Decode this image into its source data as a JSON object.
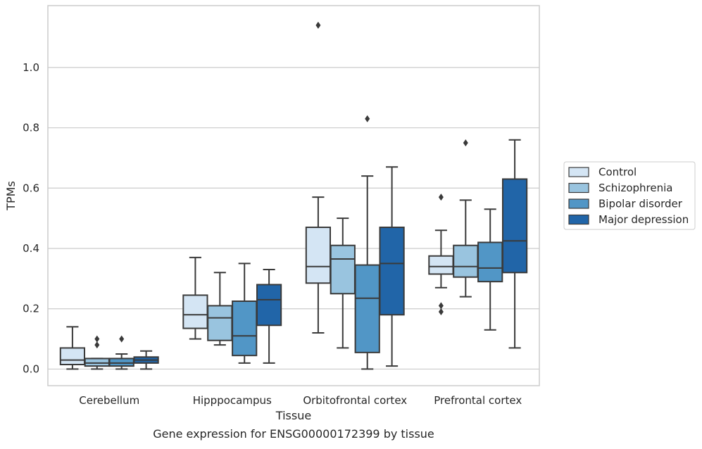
{
  "chart_data": {
    "type": "box",
    "title": "",
    "caption": "Gene expression for ENSG00000172399 by tissue",
    "xlabel": "Tissue",
    "ylabel": "TPMs",
    "ylim": [
      -0.055,
      1.205
    ],
    "yticks": [
      0.0,
      0.2,
      0.4,
      0.6,
      0.8,
      1.0
    ],
    "ytick_labels": [
      "0.0",
      "0.2",
      "0.4",
      "0.6",
      "0.8",
      "1.0"
    ],
    "grid": "horizontal",
    "legend_position": "right",
    "categories": [
      "Cerebellum",
      "Hipppocampus",
      "Orbitofrontal cortex",
      "Prefrontal cortex"
    ],
    "series": [
      {
        "name": "Control",
        "color": "#d4e5f4",
        "boxes": [
          {
            "whisker_low": 0.0,
            "q1": 0.015,
            "median": 0.03,
            "q3": 0.07,
            "whisker_high": 0.14,
            "outliers": []
          },
          {
            "whisker_low": 0.1,
            "q1": 0.135,
            "median": 0.18,
            "q3": 0.245,
            "whisker_high": 0.37,
            "outliers": []
          },
          {
            "whisker_low": 0.12,
            "q1": 0.285,
            "median": 0.34,
            "q3": 0.47,
            "whisker_high": 0.57,
            "outliers": [
              1.14
            ]
          },
          {
            "whisker_low": 0.27,
            "q1": 0.315,
            "median": 0.34,
            "q3": 0.375,
            "whisker_high": 0.46,
            "outliers": [
              0.57,
              0.21,
              0.19
            ]
          }
        ]
      },
      {
        "name": "Schizophrenia",
        "color": "#99c4df",
        "boxes": [
          {
            "whisker_low": 0.0,
            "q1": 0.01,
            "median": 0.02,
            "q3": 0.035,
            "whisker_high": 0.035,
            "outliers": [
              0.1,
              0.08
            ]
          },
          {
            "whisker_low": 0.08,
            "q1": 0.095,
            "median": 0.17,
            "q3": 0.21,
            "whisker_high": 0.32,
            "outliers": []
          },
          {
            "whisker_low": 0.07,
            "q1": 0.25,
            "median": 0.365,
            "q3": 0.41,
            "whisker_high": 0.5,
            "outliers": []
          },
          {
            "whisker_low": 0.24,
            "q1": 0.305,
            "median": 0.34,
            "q3": 0.41,
            "whisker_high": 0.56,
            "outliers": [
              0.75
            ]
          }
        ]
      },
      {
        "name": "Bipolar disorder",
        "color": "#5196c6",
        "boxes": [
          {
            "whisker_low": 0.0,
            "q1": 0.01,
            "median": 0.02,
            "q3": 0.035,
            "whisker_high": 0.05,
            "outliers": [
              0.1
            ]
          },
          {
            "whisker_low": 0.02,
            "q1": 0.045,
            "median": 0.11,
            "q3": 0.225,
            "whisker_high": 0.35,
            "outliers": []
          },
          {
            "whisker_low": 0.0,
            "q1": 0.055,
            "median": 0.235,
            "q3": 0.345,
            "whisker_high": 0.64,
            "outliers": [
              0.83
            ]
          },
          {
            "whisker_low": 0.13,
            "q1": 0.29,
            "median": 0.335,
            "q3": 0.42,
            "whisker_high": 0.53,
            "outliers": []
          }
        ]
      },
      {
        "name": "Major depression",
        "color": "#2165a8",
        "boxes": [
          {
            "whisker_low": 0.0,
            "q1": 0.02,
            "median": 0.03,
            "q3": 0.04,
            "whisker_high": 0.06,
            "outliers": []
          },
          {
            "whisker_low": 0.02,
            "q1": 0.145,
            "median": 0.23,
            "q3": 0.28,
            "whisker_high": 0.33,
            "outliers": []
          },
          {
            "whisker_low": 0.01,
            "q1": 0.18,
            "median": 0.35,
            "q3": 0.47,
            "whisker_high": 0.67,
            "outliers": []
          },
          {
            "whisker_low": 0.07,
            "q1": 0.32,
            "median": 0.425,
            "q3": 0.63,
            "whisker_high": 0.76,
            "outliers": []
          }
        ]
      }
    ]
  }
}
